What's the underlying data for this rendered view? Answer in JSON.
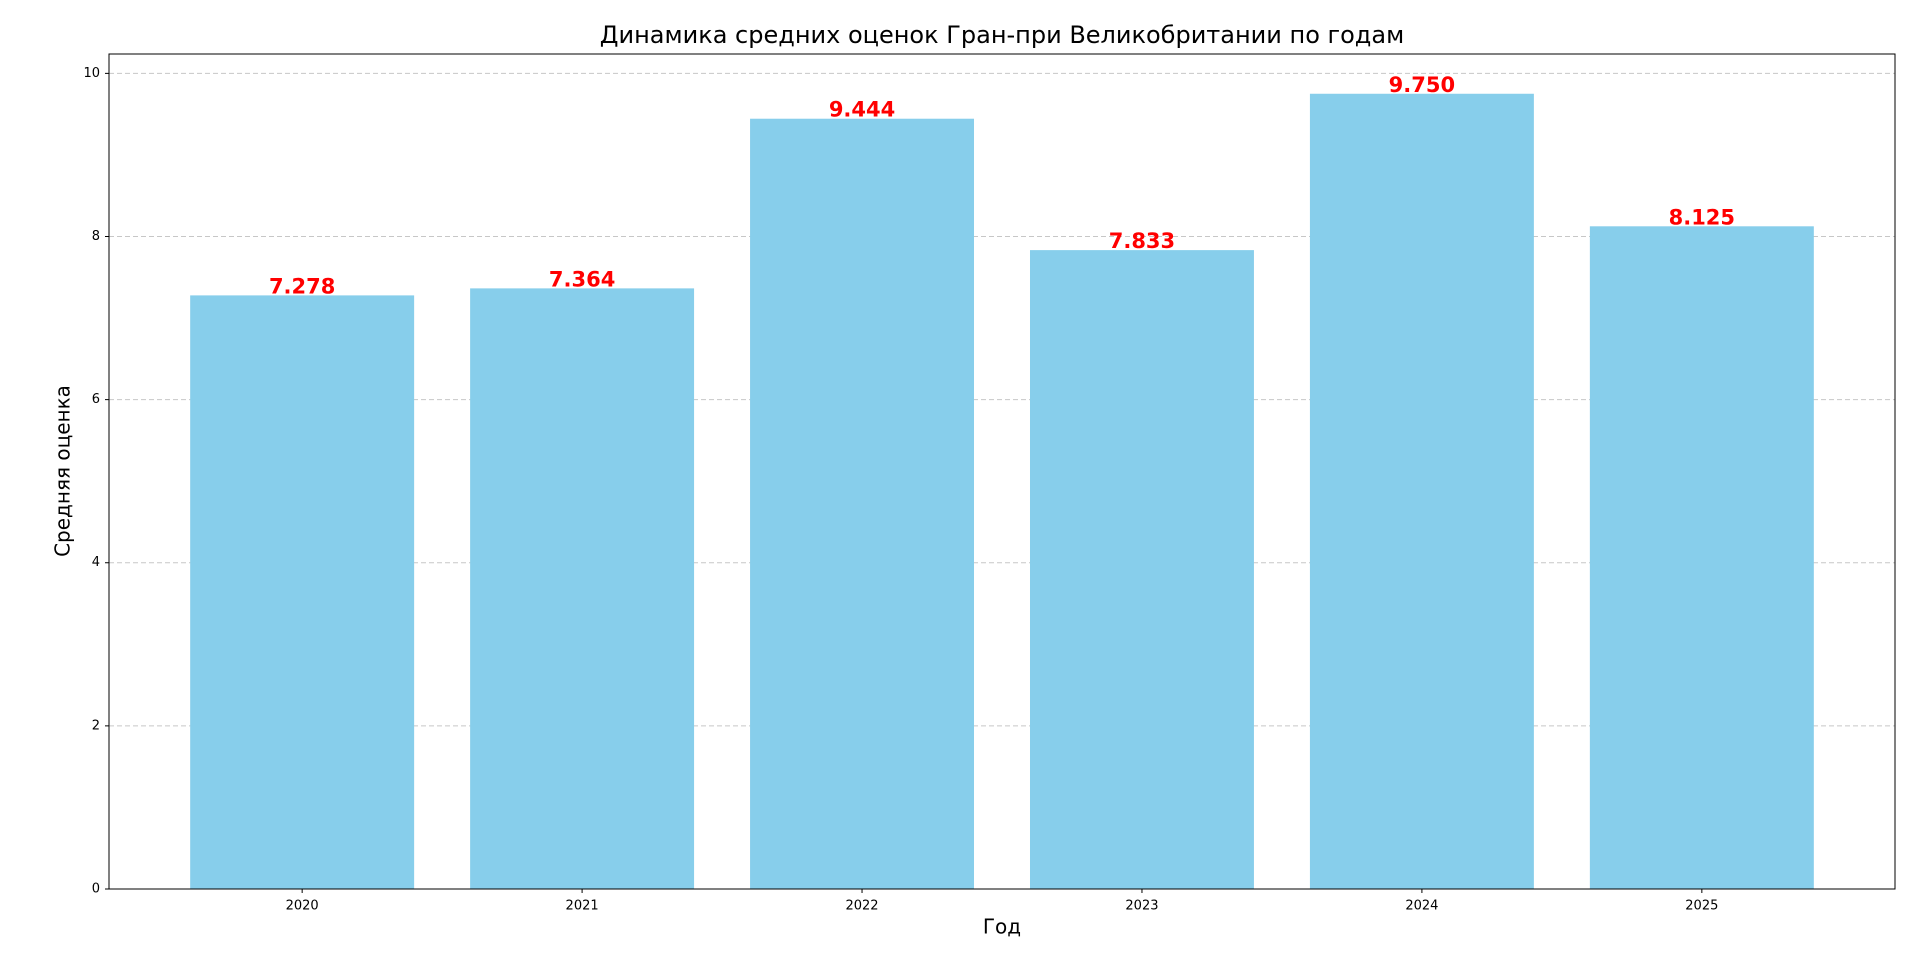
{
  "chart_data": {
    "type": "bar",
    "title": "Динамика средних оценок Гран-при Великобритании по годам",
    "x_label": "Год",
    "y_label": "Средняя оценка",
    "categories": [
      "2020",
      "2021",
      "2022",
      "2023",
      "2024",
      "2025"
    ],
    "values": [
      7.278,
      7.364,
      9.444,
      7.833,
      9.75,
      8.125
    ],
    "value_labels": [
      "7.278",
      "7.364",
      "9.444",
      "7.833",
      "9.750",
      "8.125"
    ],
    "color": "#87ceeb",
    "label_color": "#ff0000",
    "ylim": [
      0,
      10.2375
    ],
    "yticks": [
      0,
      2,
      4,
      6,
      8,
      10
    ],
    "grid": true
  }
}
